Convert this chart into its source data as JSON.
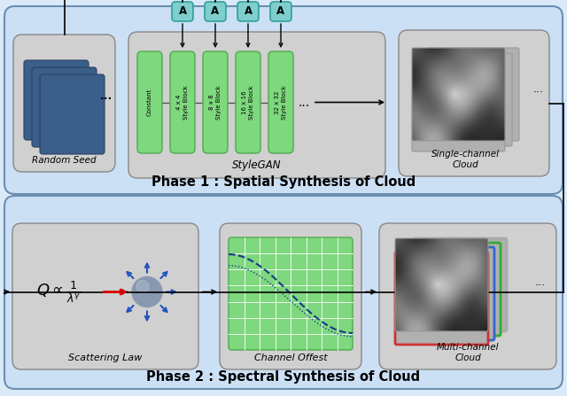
{
  "fig_width": 6.4,
  "fig_height": 4.47,
  "dpi": 100,
  "bg_outer": "#daeaf8",
  "bg_phase": "#cce0f5",
  "bg_gray": "#d0d0d0",
  "bg_green": "#7ed87e",
  "bg_teal": "#7ecece",
  "bg_blue_dark": "#3a5f8a",
  "title1": "Phase 1 : Spatial Synthesis of Cloud",
  "title2": "Phase 2 : Spectral Synthesis of Cloud",
  "style_blocks": [
    "Constant",
    "4 x 4\nStyle Block",
    "8 x 8\nStyle Block",
    "16 x 16\nStyle Block",
    "32 x 32\nStyle Block"
  ],
  "label_stylegan": "StyleGAN",
  "label_random": "Random Seed",
  "label_single": "Single-channel\nCloud",
  "label_scattering": "Scattering Law",
  "label_channel": "Channel Offest",
  "label_multi": "Multi-channel\nCloud",
  "border_colors": [
    "#cc3333",
    "#3366cc",
    "#33aa33",
    "#aaaaaa"
  ]
}
